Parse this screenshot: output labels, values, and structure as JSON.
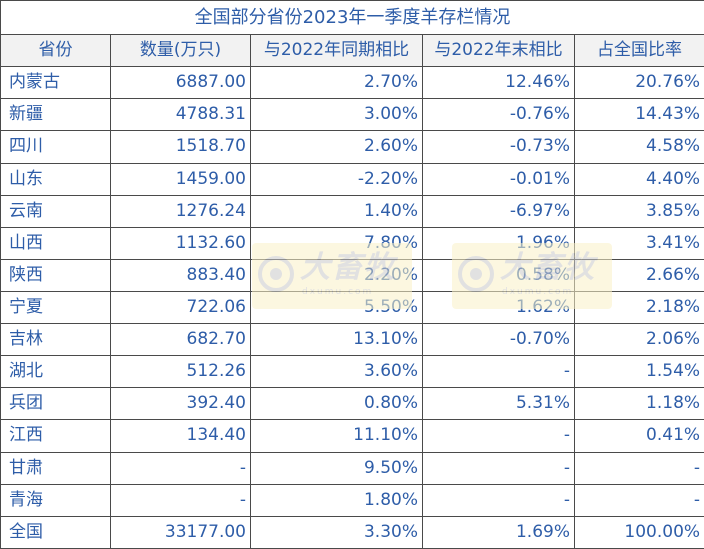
{
  "table": {
    "title": "全国部分省份2023年一季度羊存栏情况",
    "headers": [
      "省份",
      "数量(万只)",
      "与2022年同期相比",
      "与2022年末相比",
      "占全国比率"
    ],
    "rows": [
      [
        "内蒙古",
        "6887.00",
        "2.70%",
        "12.46%",
        "20.76%"
      ],
      [
        "新疆",
        "4788.31",
        "3.00%",
        "-0.76%",
        "14.43%"
      ],
      [
        "四川",
        "1518.70",
        "2.60%",
        "-0.73%",
        "4.58%"
      ],
      [
        "山东",
        "1459.00",
        "-2.20%",
        "-0.01%",
        "4.40%"
      ],
      [
        "云南",
        "1276.24",
        "1.40%",
        "-6.97%",
        "3.85%"
      ],
      [
        "山西",
        "1132.60",
        "7.80%",
        "1.96%",
        "3.41%"
      ],
      [
        "陕西",
        "883.40",
        "2.20%",
        "0.58%",
        "2.66%"
      ],
      [
        "宁夏",
        "722.06",
        "5.50%",
        "1.62%",
        "2.18%"
      ],
      [
        "吉林",
        "682.70",
        "13.10%",
        "-0.70%",
        "2.06%"
      ],
      [
        "湖北",
        "512.26",
        "3.60%",
        "-",
        "1.54%"
      ],
      [
        "兵团",
        "392.40",
        "0.80%",
        "5.31%",
        "1.18%"
      ],
      [
        "江西",
        "134.40",
        "11.10%",
        "-",
        "0.41%"
      ],
      [
        "甘肃",
        "-",
        "9.50%",
        "-",
        "-"
      ],
      [
        "青海",
        "-",
        "1.80%",
        "-",
        "-"
      ],
      [
        "全国",
        "33177.00",
        "3.30%",
        "1.69%",
        "100.00%"
      ]
    ]
  },
  "watermark": {
    "brand": "大畜牧",
    "site": "dxumu.com"
  },
  "colors": {
    "text": "#2e5da8",
    "header_bg": "#f2f2f2",
    "border": "#4a4a4a",
    "watermark_bg": "#fbf2c8"
  }
}
